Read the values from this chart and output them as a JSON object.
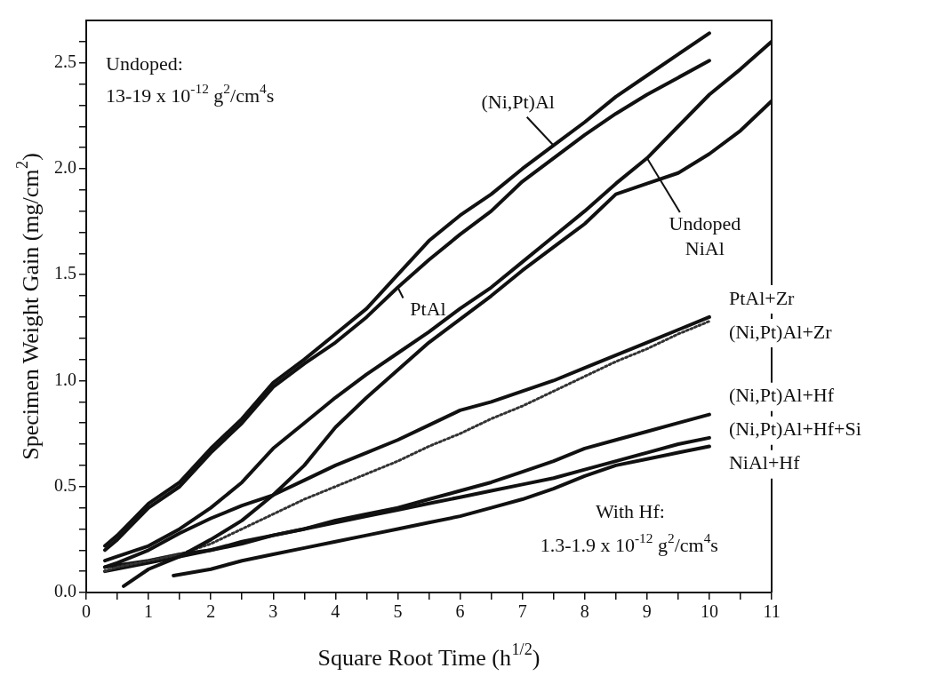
{
  "chart_data": {
    "type": "line",
    "xlabel": "Square Root Time (h$^{1/2}$)",
    "ylabel": "Specimen Weight Gain (mg/cm$^{2}$)",
    "xlim": [
      0,
      11
    ],
    "ylim": [
      0,
      2.7
    ],
    "xticks": [
      0,
      {
        "value": 0.5,
        "label": null
      },
      1,
      {
        "value": 1.5,
        "label": null
      },
      2,
      {
        "value": 2.5,
        "label": null
      },
      3,
      {
        "value": 3.5,
        "label": null
      },
      4,
      {
        "value": 4.5,
        "label": null
      },
      5,
      {
        "value": 5.5,
        "label": null
      },
      6,
      {
        "value": 6.5,
        "label": null
      },
      7,
      {
        "value": 7.5,
        "label": null
      },
      8,
      {
        "value": 8.5,
        "label": null
      },
      9,
      {
        "value": 9.5,
        "label": null
      },
      10,
      {
        "value": 10.5,
        "label": null
      },
      11
    ],
    "yticks": [
      {
        "value": 0,
        "label": "0.0"
      },
      {
        "value": 0.1,
        "label": null
      },
      {
        "value": 0.2,
        "label": null
      },
      {
        "value": 0.3,
        "label": null
      },
      {
        "value": 0.4,
        "label": null
      },
      0.5,
      {
        "value": 0.6,
        "label": null
      },
      {
        "value": 0.7,
        "label": null
      },
      {
        "value": 0.8,
        "label": null
      },
      {
        "value": 0.9,
        "label": null
      },
      {
        "value": 1,
        "label": "1.0"
      },
      {
        "value": 1.1,
        "label": null
      },
      {
        "value": 1.2,
        "label": null
      },
      {
        "value": 1.3,
        "label": null
      },
      {
        "value": 1.4,
        "label": null
      },
      1.5,
      {
        "value": 1.6,
        "label": null
      },
      {
        "value": 1.7,
        "label": null
      },
      {
        "value": 1.8,
        "label": null
      },
      {
        "value": 1.9,
        "label": null
      },
      {
        "value": 2,
        "label": "2.0"
      },
      {
        "value": 2.1,
        "label": null
      },
      {
        "value": 2.2,
        "label": null
      },
      {
        "value": 2.3,
        "label": null
      },
      {
        "value": 2.4,
        "label": null
      },
      2.5,
      {
        "value": 2.6,
        "label": null
      }
    ],
    "grid": false,
    "marker": "none",
    "annotations": [
      "Undoped:\n13-19 x 10$^{-12}$ g$^{2}$/cm$^{4}$s",
      "With Hf:\n1.3-1.9 x 10$^{-12}$ g$^{2}$/cm$^{4}$s"
    ],
    "series": [
      {
        "name": "(Ni,Pt)Al",
        "color": "#111111",
        "x": [
          0.3,
          0.5,
          1,
          1.5,
          2,
          2.5,
          3,
          3.5,
          4,
          4.5,
          5,
          5.5,
          6,
          6.5,
          7,
          7.5,
          8,
          8.5,
          9,
          9.5,
          10
        ],
        "values": [
          0.22,
          0.27,
          0.42,
          0.52,
          0.68,
          0.82,
          0.99,
          1.1,
          1.22,
          1.34,
          1.5,
          1.66,
          1.78,
          1.88,
          2.0,
          2.11,
          2.22,
          2.34,
          2.44,
          2.54,
          2.64
        ]
      },
      {
        "name": "PtAl",
        "color": "#111111",
        "x": [
          0.3,
          0.5,
          1,
          1.5,
          2,
          2.5,
          3,
          3.5,
          4,
          4.5,
          5,
          5.5,
          6,
          6.5,
          7,
          7.5,
          8,
          8.5,
          9,
          9.5,
          10
        ],
        "values": [
          0.2,
          0.25,
          0.4,
          0.5,
          0.66,
          0.8,
          0.97,
          1.08,
          1.18,
          1.3,
          1.44,
          1.57,
          1.69,
          1.8,
          1.94,
          2.05,
          2.16,
          2.26,
          2.35,
          2.43,
          2.51
        ]
      },
      {
        "name": "Undoped NiAl",
        "color": "#111111",
        "x": [
          0.3,
          0.5,
          1,
          1.5,
          2,
          2.5,
          3,
          3.5,
          4,
          4.5,
          5,
          5.5,
          6,
          6.5,
          7,
          7.5,
          8,
          8.5,
          9,
          9.5,
          10,
          10.5,
          11
        ],
        "values": [
          0.15,
          0.17,
          0.22,
          0.3,
          0.4,
          0.52,
          0.68,
          0.8,
          0.92,
          1.03,
          1.13,
          1.23,
          1.34,
          1.44,
          1.56,
          1.68,
          1.8,
          1.93,
          2.05,
          2.2,
          2.35,
          2.47,
          2.6
        ]
      },
      {
        "color": "#111111",
        "x": [
          0.6,
          1,
          1.5,
          2,
          2.5,
          3,
          3.5,
          4,
          4.5,
          5,
          5.5,
          6,
          6.5,
          7,
          7.5,
          8,
          8.5,
          9,
          9.5,
          10,
          10.5,
          11
        ],
        "values": [
          0.03,
          0.11,
          0.17,
          0.25,
          0.34,
          0.46,
          0.6,
          0.78,
          0.92,
          1.05,
          1.18,
          1.29,
          1.4,
          1.52,
          1.63,
          1.74,
          1.88,
          1.93,
          1.98,
          2.07,
          2.18,
          2.32
        ]
      },
      {
        "name": "PtAl+Zr",
        "color": "#111111",
        "x": [
          0.3,
          0.5,
          1,
          1.5,
          2,
          2.5,
          3,
          3.5,
          4,
          4.5,
          5,
          5.5,
          6,
          6.5,
          7,
          7.5,
          8,
          8.5,
          9,
          9.5,
          10
        ],
        "values": [
          0.12,
          0.14,
          0.2,
          0.28,
          0.35,
          0.41,
          0.46,
          0.53,
          0.6,
          0.66,
          0.72,
          0.79,
          0.86,
          0.9,
          0.95,
          1.0,
          1.06,
          1.12,
          1.18,
          1.24,
          1.3
        ]
      },
      {
        "name": "(Ni,Pt)Al+Zr",
        "color": "#333333",
        "line_style": "dotted",
        "x": [
          0.3,
          0.5,
          1,
          1.5,
          2,
          2.5,
          3,
          3.5,
          4,
          4.5,
          5,
          5.5,
          6,
          6.5,
          7,
          7.5,
          8,
          8.5,
          9,
          9.5,
          10
        ],
        "values": [
          0.1,
          0.12,
          0.15,
          0.18,
          0.23,
          0.3,
          0.37,
          0.44,
          0.5,
          0.56,
          0.62,
          0.69,
          0.75,
          0.82,
          0.88,
          0.95,
          1.02,
          1.09,
          1.15,
          1.22,
          1.28
        ]
      },
      {
        "name": "(Ni,Pt)Al+Hf",
        "color": "#111111",
        "x": [
          0.3,
          1,
          1.5,
          2,
          2.5,
          3,
          3.5,
          4,
          4.5,
          5,
          5.5,
          6,
          6.5,
          7,
          7.5,
          8,
          8.5,
          9,
          9.5,
          10
        ],
        "values": [
          0.12,
          0.15,
          0.18,
          0.2,
          0.24,
          0.27,
          0.3,
          0.34,
          0.37,
          0.4,
          0.44,
          0.48,
          0.52,
          0.57,
          0.62,
          0.68,
          0.72,
          0.76,
          0.8,
          0.84
        ]
      },
      {
        "name": "(Ni,Pt)Al+Hf+Si",
        "color": "#111111",
        "x": [
          0.3,
          1,
          1.5,
          2,
          2.5,
          3,
          3.5,
          4,
          4.5,
          5,
          5.5,
          6,
          6.5,
          7,
          7.5,
          8,
          8.5,
          9,
          9.5,
          10
        ],
        "values": [
          0.1,
          0.14,
          0.17,
          0.2,
          0.23,
          0.27,
          0.3,
          0.33,
          0.36,
          0.39,
          0.42,
          0.45,
          0.48,
          0.51,
          0.54,
          0.58,
          0.62,
          0.66,
          0.7,
          0.73
        ]
      },
      {
        "name": "NiAl+Hf",
        "color": "#111111",
        "x": [
          1.4,
          2,
          2.5,
          3,
          3.5,
          4,
          4.5,
          5,
          5.5,
          6,
          6.5,
          7,
          7.5,
          8,
          8.5,
          9,
          9.5,
          10
        ],
        "values": [
          0.08,
          0.11,
          0.15,
          0.18,
          0.21,
          0.24,
          0.27,
          0.3,
          0.33,
          0.36,
          0.4,
          0.44,
          0.49,
          0.55,
          0.6,
          0.63,
          0.66,
          0.69
        ]
      }
    ]
  }
}
